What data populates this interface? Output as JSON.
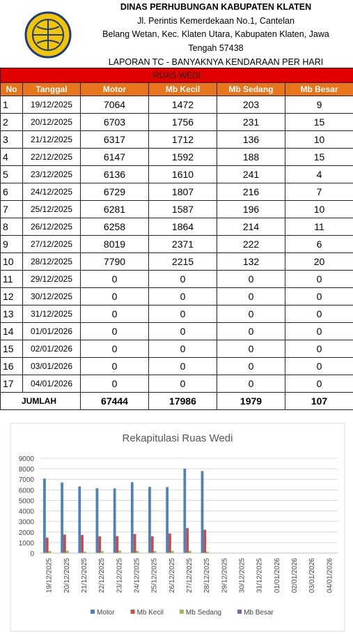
{
  "header": {
    "title": "DINAS PERHUBUNGAN KABUPATEN KLATEN",
    "address1": "Jl. Perintis Kemerdekaan No.1, Cantelan",
    "address2": "Belang Wetan, Kec. Klaten Utara, Kabupaten Klaten, Jawa",
    "address3": "Tengah 57438",
    "report": "LAPORAN TC - BANYAKNYA KENDARAAN PER HARI"
  },
  "table": {
    "banner": "RUAS WEDI",
    "columns": [
      "No",
      "Tanggal",
      "Motor",
      "Mb Kecil",
      "Mb Sedang",
      "Mb Besar"
    ],
    "rows": [
      [
        1,
        "19/12/2025",
        7064,
        1472,
        203,
        9
      ],
      [
        2,
        "20/12/2025",
        6703,
        1756,
        231,
        15
      ],
      [
        3,
        "21/12/2025",
        6317,
        1712,
        136,
        10
      ],
      [
        4,
        "22/12/2025",
        6147,
        1592,
        188,
        15
      ],
      [
        5,
        "23/12/2025",
        6136,
        1610,
        241,
        4
      ],
      [
        6,
        "24/12/2025",
        6729,
        1807,
        216,
        7
      ],
      [
        7,
        "25/12/2025",
        6281,
        1587,
        196,
        10
      ],
      [
        8,
        "26/12/2025",
        6258,
        1864,
        214,
        11
      ],
      [
        9,
        "27/12/2025",
        8019,
        2371,
        222,
        6
      ],
      [
        10,
        "28/12/2025",
        7790,
        2215,
        132,
        20
      ],
      [
        11,
        "29/12/2025",
        0,
        0,
        0,
        0
      ],
      [
        12,
        "30/12/2025",
        0,
        0,
        0,
        0
      ],
      [
        13,
        "31/12/2025",
        0,
        0,
        0,
        0
      ],
      [
        14,
        "01/01/2026",
        0,
        0,
        0,
        0
      ],
      [
        15,
        "02/01/2026",
        0,
        0,
        0,
        0
      ],
      [
        16,
        "03/01/2026",
        0,
        0,
        0,
        0
      ],
      [
        17,
        "04/01/2026",
        0,
        0,
        0,
        0
      ]
    ],
    "total_label": "JUMLAH",
    "totals": [
      67444,
      17986,
      1979,
      107
    ]
  },
  "chart_data": {
    "type": "bar",
    "title": "Rekapitulasi Ruas Wedi",
    "categories": [
      "19/12/2025",
      "20/12/2025",
      "21/12/2025",
      "22/12/2025",
      "23/12/2025",
      "24/12/2025",
      "25/12/2025",
      "26/12/2025",
      "27/12/2025",
      "28/12/2025",
      "29/12/2025",
      "30/12/2025",
      "31/12/2025",
      "01/01/2026",
      "02/01/2026",
      "03/01/2026",
      "04/01/2026"
    ],
    "series": [
      {
        "name": "Motor",
        "color": "#4f81bd",
        "values": [
          7064,
          6703,
          6317,
          6147,
          6136,
          6729,
          6281,
          6258,
          8019,
          7790,
          0,
          0,
          0,
          0,
          0,
          0,
          0
        ]
      },
      {
        "name": "Mb Kecil",
        "color": "#c0504d",
        "values": [
          1472,
          1756,
          1712,
          1592,
          1610,
          1807,
          1587,
          1864,
          2371,
          2215,
          0,
          0,
          0,
          0,
          0,
          0,
          0
        ]
      },
      {
        "name": "Mb Sedang",
        "color": "#9bbb59",
        "values": [
          203,
          231,
          136,
          188,
          241,
          216,
          196,
          214,
          222,
          132,
          0,
          0,
          0,
          0,
          0,
          0,
          0
        ]
      },
      {
        "name": "Mb Besar",
        "color": "#8064a2",
        "values": [
          9,
          15,
          10,
          15,
          4,
          7,
          10,
          11,
          6,
          20,
          0,
          0,
          0,
          0,
          0,
          0,
          0
        ]
      }
    ],
    "ylim": [
      0,
      9000
    ],
    "yticks": [
      0,
      1000,
      2000,
      3000,
      4000,
      5000,
      6000,
      7000,
      8000,
      9000
    ],
    "grid": true,
    "legend": "bottom"
  }
}
